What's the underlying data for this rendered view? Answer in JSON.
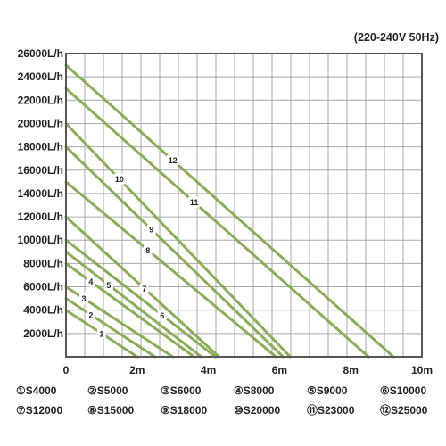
{
  "chart_data": {
    "type": "line",
    "annotation": "(220-240V  50Hz)",
    "x_ticks": [
      "0",
      "2m",
      "4m",
      "6m",
      "8m",
      "10m"
    ],
    "y_ticks": [
      "2000L/h",
      "4000L/h",
      "6000L/h",
      "8000L/h",
      "10000L/h",
      "12000L/h",
      "14000L/h",
      "16000L/h",
      "18000L/h",
      "20000L/h",
      "22000L/h",
      "24000L/h",
      "26000L/h"
    ],
    "xlim": [
      0,
      10
    ],
    "ylim": [
      0,
      26000
    ],
    "grid": true,
    "line_color": "#8aae58",
    "series": [
      {
        "name": "S4000",
        "marker": "1",
        "legend": "①S4000",
        "x": [
          0,
          2.0
        ],
        "y": [
          4000,
          0
        ],
        "label_at": 1.0
      },
      {
        "name": "S5000",
        "marker": "2",
        "legend": "②S5000",
        "x": [
          0,
          2.5
        ],
        "y": [
          5000,
          0
        ],
        "label_at": 0.7
      },
      {
        "name": "S6000",
        "marker": "3",
        "legend": "③S6000",
        "x": [
          0,
          3.0
        ],
        "y": [
          6000,
          0
        ],
        "label_at": 0.5
      },
      {
        "name": "S8000",
        "marker": "4",
        "legend": "④S8000",
        "x": [
          0,
          3.6
        ],
        "y": [
          8000,
          0
        ],
        "label_at": 0.7
      },
      {
        "name": "S9000",
        "marker": "5",
        "legend": "⑤S9000",
        "x": [
          0,
          3.8
        ],
        "y": [
          9000,
          0
        ],
        "label_at": 1.2
      },
      {
        "name": "S10000",
        "marker": "6",
        "legend": "⑥S10000",
        "x": [
          0,
          4.2
        ],
        "y": [
          10000,
          0
        ],
        "label_at": 2.7
      },
      {
        "name": "S12000",
        "marker": "7",
        "legend": "⑦S12000",
        "x": [
          0,
          4.3
        ],
        "y": [
          12000,
          0
        ],
        "label_at": 2.2
      },
      {
        "name": "S15000",
        "marker": "8",
        "legend": "⑧S15000",
        "x": [
          0,
          5.9
        ],
        "y": [
          15000,
          0
        ],
        "label_at": 2.3
      },
      {
        "name": "S18000",
        "marker": "9",
        "legend": "⑨S18000",
        "x": [
          0,
          6.1
        ],
        "y": [
          18000,
          0
        ],
        "label_at": 2.4
      },
      {
        "name": "S20000",
        "marker": "10",
        "legend": "⑩S20000",
        "x": [
          0,
          6.3
        ],
        "y": [
          20000,
          0
        ],
        "label_at": 1.5
      },
      {
        "name": "S23000",
        "marker": "11",
        "legend": "⑪S23000",
        "x": [
          0,
          8.5
        ],
        "y": [
          23000,
          0
        ],
        "label_at": 3.6
      },
      {
        "name": "S25000",
        "marker": "12",
        "legend": "⑫S25000",
        "x": [
          0,
          9.2
        ],
        "y": [
          25000,
          0
        ],
        "label_at": 3.0
      }
    ]
  }
}
